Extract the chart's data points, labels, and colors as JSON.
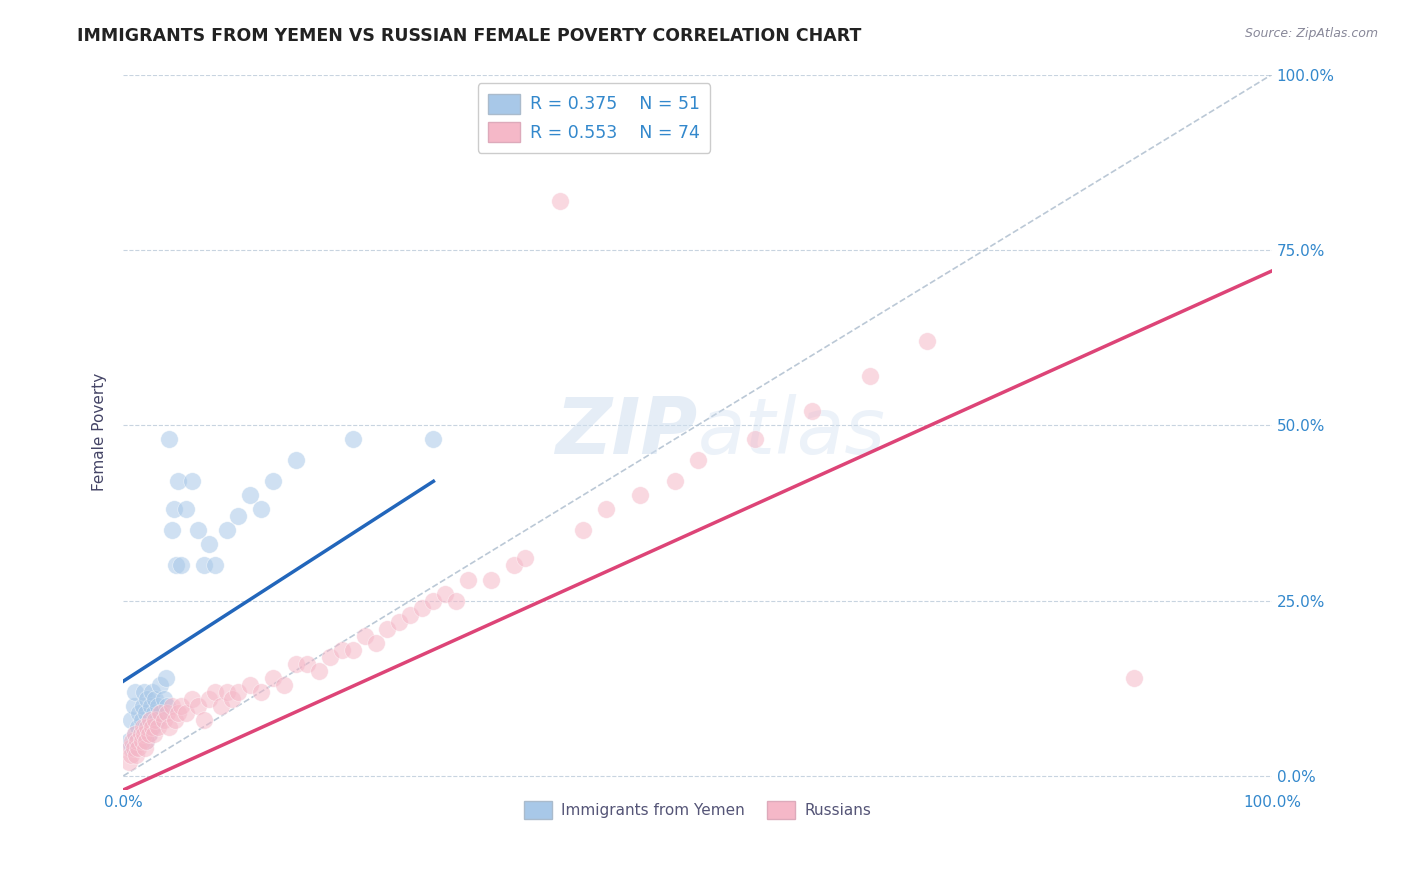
{
  "title": "IMMIGRANTS FROM YEMEN VS RUSSIAN FEMALE POVERTY CORRELATION CHART",
  "source": "Source: ZipAtlas.com",
  "ylabel": "Female Poverty",
  "watermark": "ZIPatlas",
  "legend_label1": "Immigrants from Yemen",
  "legend_label2": "Russians",
  "xlim": [
    0,
    1.0
  ],
  "ylim": [
    -0.02,
    1.0
  ],
  "ytick_positions": [
    0.0,
    0.25,
    0.5,
    0.75,
    1.0
  ],
  "color_blue": "#a8c8e8",
  "color_pink": "#f5b8c8",
  "line_blue": "#2266bb",
  "line_pink": "#dd4477",
  "line_dashed": "#aabbcc",
  "blue_scatter_x": [
    0.005,
    0.007,
    0.008,
    0.009,
    0.01,
    0.01,
    0.012,
    0.013,
    0.014,
    0.015,
    0.016,
    0.017,
    0.018,
    0.019,
    0.02,
    0.02,
    0.021,
    0.022,
    0.023,
    0.024,
    0.025,
    0.026,
    0.027,
    0.028,
    0.029,
    0.03,
    0.032,
    0.033,
    0.035,
    0.037,
    0.038,
    0.04,
    0.042,
    0.044,
    0.046,
    0.048,
    0.05,
    0.055,
    0.06,
    0.065,
    0.07,
    0.075,
    0.08,
    0.09,
    0.1,
    0.11,
    0.12,
    0.13,
    0.15,
    0.2,
    0.27
  ],
  "blue_scatter_y": [
    0.05,
    0.08,
    0.04,
    0.1,
    0.06,
    0.12,
    0.05,
    0.07,
    0.09,
    0.06,
    0.08,
    0.1,
    0.12,
    0.07,
    0.05,
    0.09,
    0.11,
    0.06,
    0.08,
    0.1,
    0.12,
    0.07,
    0.09,
    0.11,
    0.08,
    0.1,
    0.13,
    0.09,
    0.11,
    0.14,
    0.1,
    0.48,
    0.35,
    0.38,
    0.3,
    0.42,
    0.3,
    0.38,
    0.42,
    0.35,
    0.3,
    0.33,
    0.3,
    0.35,
    0.37,
    0.4,
    0.38,
    0.42,
    0.45,
    0.48,
    0.48
  ],
  "pink_scatter_x": [
    0.005,
    0.006,
    0.007,
    0.008,
    0.009,
    0.01,
    0.011,
    0.012,
    0.013,
    0.015,
    0.016,
    0.017,
    0.018,
    0.019,
    0.02,
    0.021,
    0.022,
    0.023,
    0.025,
    0.027,
    0.028,
    0.03,
    0.032,
    0.035,
    0.038,
    0.04,
    0.042,
    0.045,
    0.048,
    0.05,
    0.055,
    0.06,
    0.065,
    0.07,
    0.075,
    0.08,
    0.085,
    0.09,
    0.095,
    0.1,
    0.11,
    0.12,
    0.13,
    0.14,
    0.15,
    0.16,
    0.17,
    0.18,
    0.19,
    0.2,
    0.21,
    0.22,
    0.23,
    0.24,
    0.25,
    0.26,
    0.27,
    0.28,
    0.29,
    0.3,
    0.32,
    0.34,
    0.35,
    0.38,
    0.4,
    0.42,
    0.45,
    0.48,
    0.5,
    0.55,
    0.6,
    0.65,
    0.7,
    0.88
  ],
  "pink_scatter_y": [
    0.02,
    0.04,
    0.03,
    0.05,
    0.04,
    0.06,
    0.03,
    0.05,
    0.04,
    0.06,
    0.05,
    0.07,
    0.06,
    0.04,
    0.05,
    0.07,
    0.06,
    0.08,
    0.07,
    0.06,
    0.08,
    0.07,
    0.09,
    0.08,
    0.09,
    0.07,
    0.1,
    0.08,
    0.09,
    0.1,
    0.09,
    0.11,
    0.1,
    0.08,
    0.11,
    0.12,
    0.1,
    0.12,
    0.11,
    0.12,
    0.13,
    0.12,
    0.14,
    0.13,
    0.16,
    0.16,
    0.15,
    0.17,
    0.18,
    0.18,
    0.2,
    0.19,
    0.21,
    0.22,
    0.23,
    0.24,
    0.25,
    0.26,
    0.25,
    0.28,
    0.28,
    0.3,
    0.31,
    0.82,
    0.35,
    0.38,
    0.4,
    0.42,
    0.45,
    0.48,
    0.52,
    0.57,
    0.62,
    0.14
  ],
  "blue_line_x": [
    0.0,
    0.27
  ],
  "blue_line_y": [
    0.135,
    0.42
  ],
  "pink_line_x": [
    0.0,
    1.0
  ],
  "pink_line_y": [
    -0.02,
    0.72
  ],
  "dashed_line_x": [
    0.0,
    1.0
  ],
  "dashed_line_y": [
    0.0,
    1.0
  ],
  "bg_color": "#ffffff",
  "grid_color": "#c8d4e0",
  "title_color": "#222222",
  "right_label_color": "#3388cc"
}
